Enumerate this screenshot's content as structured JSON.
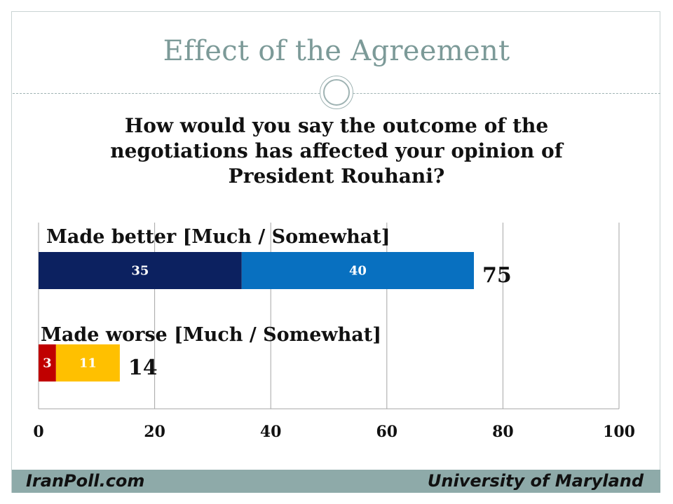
{
  "title": "Effect of the Agreement",
  "question": "How would you say the outcome of the negotiations has affected your opinion of President Rouhani?",
  "footer": {
    "left": "IranPoll.com",
    "right": "University of Maryland"
  },
  "colors": {
    "much_better": "#0c2160",
    "somewhat_better": "#0870c0",
    "much_worse": "#c00000",
    "somewhat_worse": "#ffc000",
    "grid": "#a6a6a6"
  },
  "chart_data": {
    "type": "bar",
    "orientation": "horizontal",
    "stacked": true,
    "xlim": [
      0,
      100
    ],
    "xticks": [
      0,
      20,
      40,
      60,
      80,
      100
    ],
    "grid": true,
    "categories": [
      {
        "label": "Made better [Much / Somewhat]",
        "segments": [
          35,
          40
        ],
        "total": 75,
        "colors": [
          "#0c2160",
          "#0870c0"
        ]
      },
      {
        "label": "Made worse [Much / Somewhat]",
        "segments": [
          3,
          11
        ],
        "total": 14,
        "colors": [
          "#c00000",
          "#ffc000"
        ]
      }
    ]
  }
}
